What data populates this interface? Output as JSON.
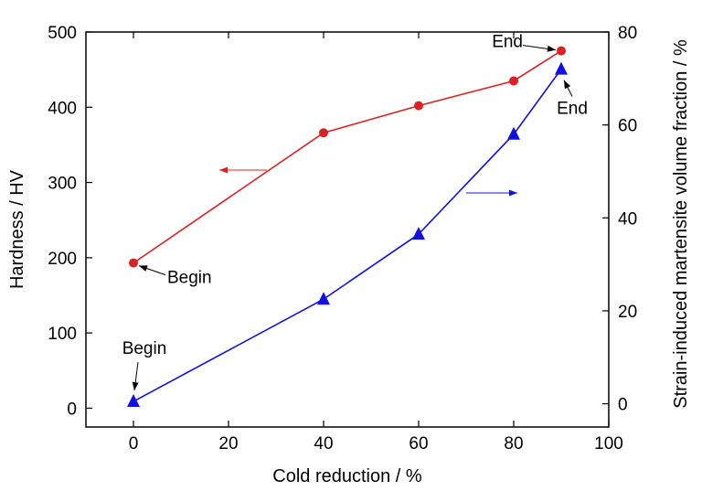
{
  "chart_data": {
    "type": "line",
    "xlabel": "Cold reduction / %",
    "ylabel": "Hardness / HV",
    "y2label": "Strain-induced martensite volume fraction / %",
    "xlim": [
      -10,
      100
    ],
    "ylim": [
      -25,
      500
    ],
    "y2lim": [
      -5,
      80
    ],
    "xticks": [
      0,
      20,
      40,
      60,
      80,
      100
    ],
    "yticks": [
      0,
      100,
      200,
      300,
      400,
      500
    ],
    "y2ticks": [
      0,
      20,
      40,
      60,
      80
    ],
    "grid": false,
    "legend": "none",
    "series": [
      {
        "axis": "left",
        "color": "#e02020",
        "marker": "circle",
        "x": [
          0,
          40,
          60,
          80,
          90
        ],
        "y": [
          193,
          366,
          402,
          435,
          475
        ]
      },
      {
        "axis": "right",
        "color": "#1010e0",
        "marker": "triangle",
        "x": [
          0,
          40,
          60,
          80,
          90
        ],
        "y": [
          0.5,
          22.5,
          36.5,
          58,
          72
        ]
      }
    ],
    "annotations": [
      {
        "text": "Begin",
        "series": 0,
        "point": 0
      },
      {
        "text": "End",
        "series": 0,
        "point": 4
      },
      {
        "text": "Begin",
        "series": 1,
        "point": 0
      },
      {
        "text": "End",
        "series": 1,
        "point": 4
      }
    ],
    "axis_arrows": [
      {
        "series": 0,
        "direction": "left"
      },
      {
        "series": 1,
        "direction": "right"
      }
    ]
  }
}
